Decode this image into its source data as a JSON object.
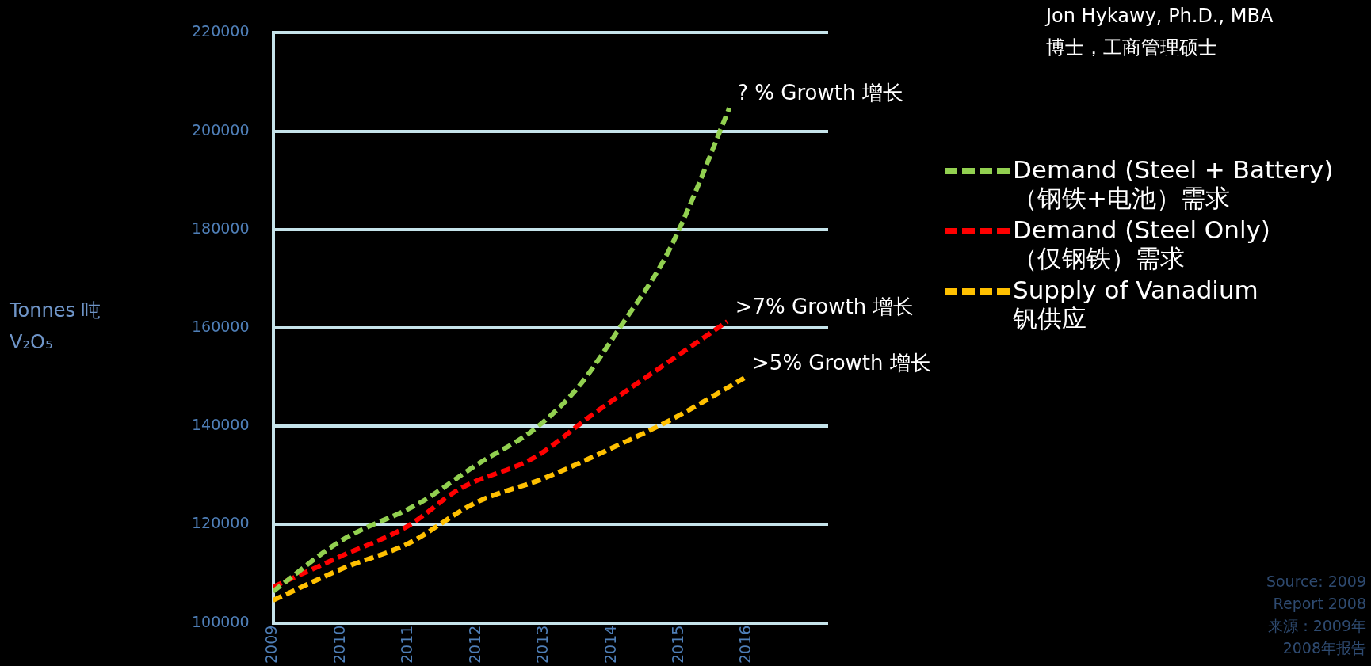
{
  "chart_data": {
    "type": "line",
    "xlim": [
      2009,
      2017.2
    ],
    "xticks": [
      2009,
      2010,
      2011,
      2012,
      2013,
      2014,
      2015,
      2016
    ],
    "ylim": [
      100000,
      220000
    ],
    "yticks": [
      100000,
      120000,
      140000,
      160000,
      180000,
      200000,
      220000
    ],
    "grid": "y",
    "legend": "right",
    "marker": "none",
    "line_style": "dashed",
    "series": [
      {
        "name": "Demand (Steel + Battery)\n（钢铁+电池）需求",
        "color": "#92d050",
        "x": [
          2009,
          2009.99,
          2011.18,
          2012.0,
          2012.88,
          2013.51,
          2014.14,
          2014.77,
          2015.08,
          2015.74
        ],
        "values": [
          106400,
          116600,
          124500,
          132100,
          139600,
          148000,
          160400,
          173700,
          182500,
          204700
        ]
      },
      {
        "name": "Demand (Steel Only)\n（仅钢铁）需求",
        "color": "#ff0000",
        "x": [
          2009,
          2009.99,
          2010.99,
          2011.75,
          2012.88,
          2013.7,
          2014.77,
          2015.71
        ],
        "values": [
          107300,
          113500,
          119700,
          127200,
          133800,
          142200,
          152400,
          161300
        ]
      },
      {
        "name": "Supply of Vanadium\n钒供应",
        "color": "#ffc000",
        "x": [
          2009,
          2010.05,
          2010.99,
          2012.0,
          2013.0,
          2014.01,
          2014.89,
          2015.96
        ],
        "values": [
          104600,
          111200,
          116100,
          124500,
          129400,
          135600,
          141400,
          149800
        ]
      }
    ],
    "annotations": [
      "Tonnes 吨\nV₂O₅",
      "Jon Hykawy, Ph.D., MBA",
      "博士，工商管理硕士",
      {
        "text": "? % Growth 增长",
        "x": 2015.74,
        "y": 204700
      },
      {
        "text": ">7% Growth 增长",
        "x": 2015.71,
        "y": 161300
      },
      {
        "text": ">5% Growth 增长",
        "x": 2015.96,
        "y": 149800
      },
      "Source: 2009",
      "Report 2008",
      "来源：2009年",
      "2008年报告"
    ]
  }
}
